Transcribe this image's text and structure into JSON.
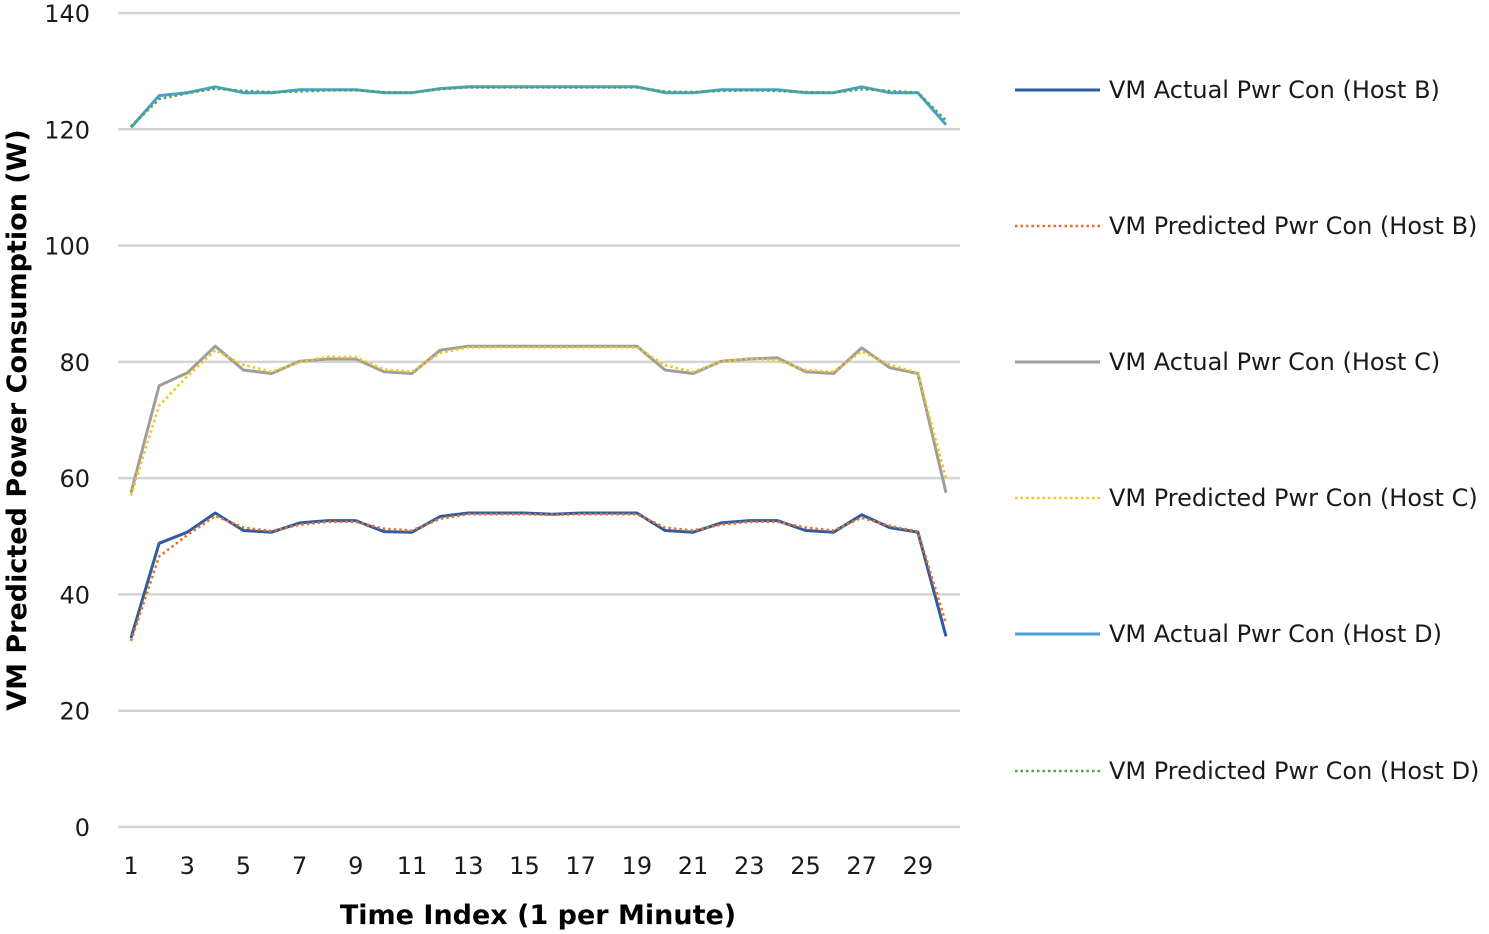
{
  "chart_data": {
    "type": "line",
    "xlabel": "Time Index (1 per Minute)",
    "ylabel": "VM Predicted Power Consumption (W)",
    "ylim": [
      0,
      140
    ],
    "yticks": [
      0,
      20,
      40,
      60,
      80,
      100,
      120,
      140
    ],
    "xlim": [
      1,
      30
    ],
    "xticks": [
      1,
      3,
      5,
      7,
      9,
      11,
      13,
      15,
      17,
      19,
      21,
      23,
      25,
      27,
      29
    ],
    "grid": true,
    "legend_position": "right",
    "x": [
      1,
      2,
      3,
      4,
      5,
      6,
      7,
      8,
      9,
      10,
      11,
      12,
      13,
      14,
      15,
      16,
      17,
      18,
      19,
      20,
      21,
      22,
      23,
      24,
      25,
      26,
      27,
      28,
      29,
      30
    ],
    "series": [
      {
        "name": "VM Actual Pwr Con (Host B)",
        "color": "#2e5d9f",
        "style": "solid",
        "values": [
          32.5,
          48.8,
          50.7,
          54.0,
          51.0,
          50.7,
          52.3,
          52.7,
          52.7,
          50.8,
          50.7,
          53.4,
          54.0,
          54.0,
          54.0,
          53.8,
          54.0,
          54.0,
          54.0,
          51.0,
          50.7,
          52.3,
          52.7,
          52.7,
          51.0,
          50.7,
          53.7,
          51.5,
          50.7,
          32.8
        ]
      },
      {
        "name": "VM Predicted Pwr Con (Host B)",
        "color": "#e8702a",
        "style": "dotted",
        "values": [
          32.0,
          46.5,
          50.2,
          53.5,
          51.5,
          50.9,
          52.0,
          52.5,
          52.5,
          51.3,
          51.0,
          53.0,
          53.8,
          53.8,
          53.8,
          53.7,
          53.8,
          53.8,
          53.8,
          51.5,
          51.0,
          52.0,
          52.5,
          52.5,
          51.5,
          51.0,
          53.2,
          51.8,
          50.8,
          35.0
        ]
      },
      {
        "name": "VM Actual Pwr Con (Host C)",
        "color": "#9e9e9e",
        "style": "solid",
        "values": [
          57.5,
          75.9,
          78.1,
          82.7,
          78.6,
          78.0,
          80.1,
          80.5,
          80.5,
          78.3,
          78.0,
          82.0,
          82.7,
          82.7,
          82.7,
          82.7,
          82.7,
          82.7,
          82.7,
          78.6,
          78.0,
          80.1,
          80.5,
          80.7,
          78.3,
          78.0,
          82.4,
          79.0,
          78.0,
          57.5
        ]
      },
      {
        "name": "VM Predicted Pwr Con (Host C)",
        "color": "#f5c518",
        "style": "dotted",
        "values": [
          57.0,
          72.5,
          77.5,
          82.0,
          79.5,
          78.3,
          79.9,
          80.9,
          80.8,
          78.7,
          78.3,
          81.5,
          82.5,
          82.5,
          82.5,
          82.5,
          82.5,
          82.5,
          82.5,
          79.4,
          78.3,
          80.0,
          80.6,
          80.3,
          78.6,
          78.3,
          81.8,
          79.5,
          78.1,
          60.0
        ]
      },
      {
        "name": "VM Actual Pwr Con (Host D)",
        "color": "#4a9fd4",
        "style": "solid",
        "values": [
          120.3,
          125.8,
          126.3,
          127.3,
          126.3,
          126.3,
          126.8,
          126.8,
          126.8,
          126.3,
          126.3,
          127.0,
          127.3,
          127.3,
          127.3,
          127.3,
          127.3,
          127.3,
          127.3,
          126.3,
          126.3,
          126.8,
          126.8,
          126.8,
          126.3,
          126.3,
          127.3,
          126.3,
          126.3,
          120.8
        ]
      },
      {
        "name": "VM Predicted Pwr Con (Host D)",
        "color": "#4aa84a",
        "style": "dotted",
        "values": [
          120.5,
          125.2,
          126.2,
          127.0,
          126.6,
          126.4,
          126.5,
          126.7,
          126.7,
          126.4,
          126.3,
          126.9,
          127.2,
          127.2,
          127.2,
          127.2,
          127.2,
          127.2,
          127.2,
          126.5,
          126.4,
          126.6,
          126.7,
          126.6,
          126.4,
          126.3,
          126.9,
          126.6,
          126.3,
          121.5
        ]
      }
    ]
  }
}
